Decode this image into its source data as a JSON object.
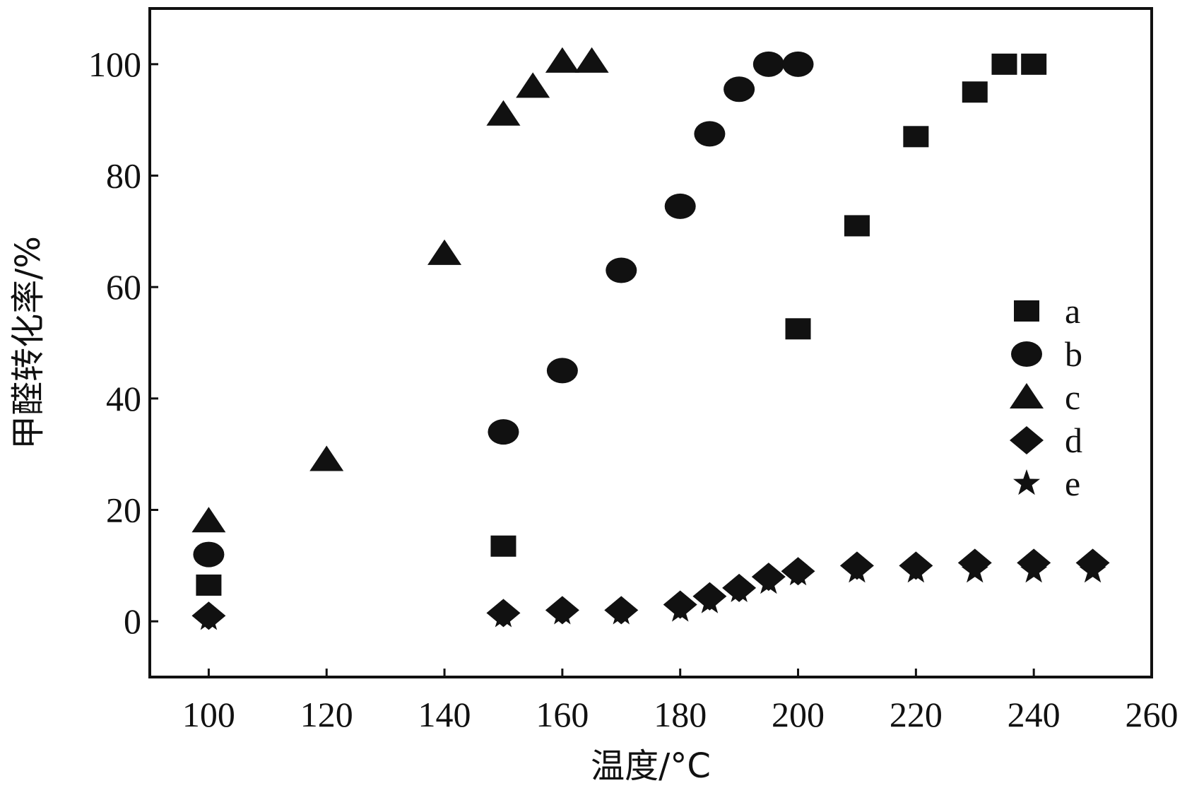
{
  "chart_data": {
    "type": "scatter",
    "xlabel": "温度/°C",
    "ylabel": "甲醛转化率/%",
    "xlim": [
      90,
      260
    ],
    "ylim": [
      -10,
      110
    ],
    "xticks": [
      100,
      120,
      140,
      160,
      180,
      200,
      220,
      240,
      260
    ],
    "yticks": [
      0,
      20,
      40,
      60,
      80,
      100
    ],
    "x_tick_labels": [
      "100",
      "120",
      "140",
      "160",
      "180",
      "200",
      "220",
      "240",
      "260"
    ],
    "y_tick_labels": [
      "0",
      "20",
      "40",
      "60",
      "80",
      "100"
    ],
    "grid": false,
    "legend_position": "right",
    "marker_color": "#111111",
    "series": [
      {
        "name": "a",
        "marker": "square",
        "points": [
          [
            100,
            6.5
          ],
          [
            150,
            13.5
          ],
          [
            200,
            52.5
          ],
          [
            210,
            71
          ],
          [
            220,
            87
          ],
          [
            230,
            95
          ],
          [
            235,
            100
          ],
          [
            240,
            100
          ]
        ]
      },
      {
        "name": "b",
        "marker": "circle",
        "points": [
          [
            100,
            12
          ],
          [
            150,
            34
          ],
          [
            160,
            45
          ],
          [
            170,
            63
          ],
          [
            180,
            74.5
          ],
          [
            185,
            87.5
          ],
          [
            190,
            95.5
          ],
          [
            195,
            100
          ],
          [
            200,
            100
          ]
        ]
      },
      {
        "name": "c",
        "marker": "triangle",
        "points": [
          [
            100,
            18
          ],
          [
            120,
            29
          ],
          [
            140,
            66
          ],
          [
            150,
            91
          ],
          [
            155,
            96
          ],
          [
            160,
            100.5
          ],
          [
            165,
            100.5
          ]
        ]
      },
      {
        "name": "d",
        "marker": "diamond",
        "points": [
          [
            100,
            1
          ],
          [
            150,
            1.5
          ],
          [
            160,
            2
          ],
          [
            170,
            2
          ],
          [
            180,
            3
          ],
          [
            185,
            4.5
          ],
          [
            190,
            6
          ],
          [
            195,
            8
          ],
          [
            200,
            9
          ],
          [
            210,
            10
          ],
          [
            220,
            10
          ],
          [
            230,
            10.5
          ],
          [
            240,
            10.5
          ],
          [
            250,
            10.5
          ]
        ]
      },
      {
        "name": "e",
        "marker": "star",
        "points": [
          [
            100,
            0.5
          ],
          [
            150,
            1
          ],
          [
            160,
            1.5
          ],
          [
            170,
            1.5
          ],
          [
            180,
            2
          ],
          [
            185,
            3.5
          ],
          [
            190,
            5.5
          ],
          [
            195,
            7
          ],
          [
            200,
            8.5
          ],
          [
            210,
            9
          ],
          [
            220,
            9
          ],
          [
            230,
            9
          ],
          [
            240,
            9
          ],
          [
            250,
            9
          ]
        ]
      }
    ]
  }
}
